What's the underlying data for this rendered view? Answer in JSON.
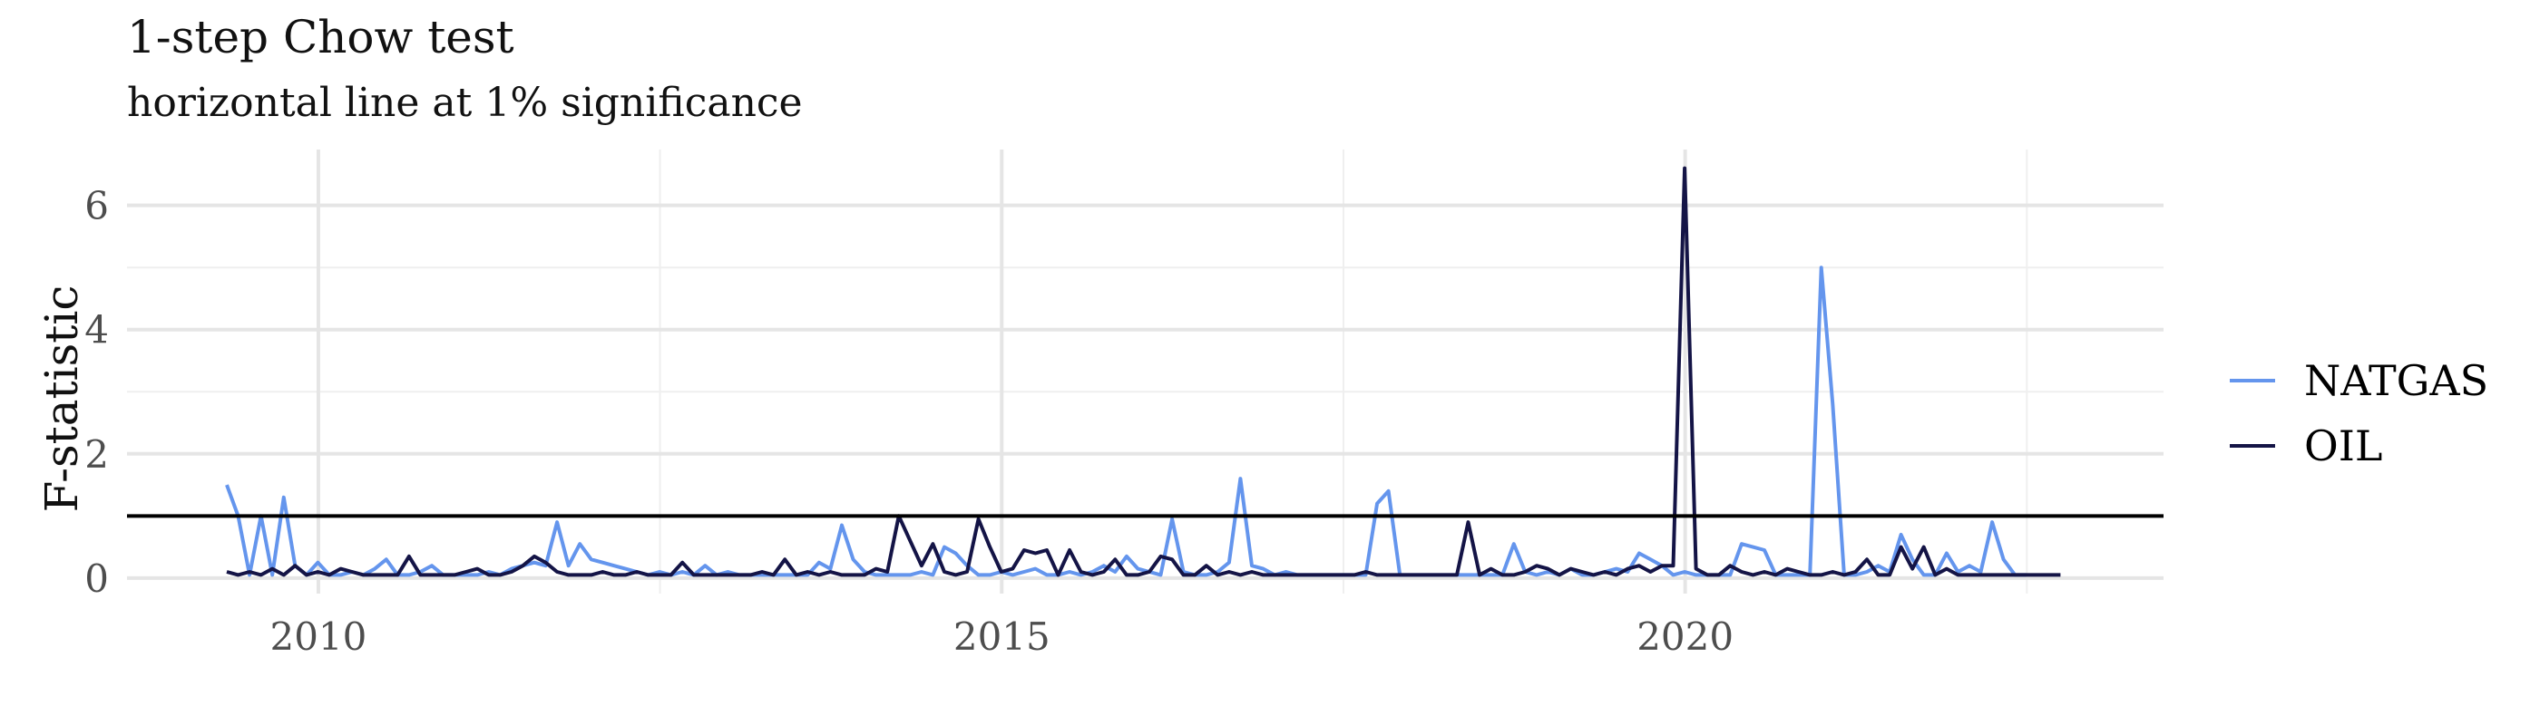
{
  "title": "1-step Chow test",
  "subtitle": "horizontal line at 1% significance",
  "colors": {
    "NATGAS": "#6495ED",
    "OIL": "#141446",
    "threshold": "#000000",
    "grid_major": "#e5e5e5",
    "grid_minor": "#efefef"
  },
  "chart_data": {
    "type": "line",
    "title": "1-step Chow test",
    "subtitle": "horizontal line at 1% significance",
    "xlabel": "",
    "ylabel": "F-statistic",
    "xlim": [
      2008.6,
      2023.5
    ],
    "ylim": [
      -0.25,
      6.9
    ],
    "xticks": [
      2010,
      2015,
      2020
    ],
    "yticks": [
      0,
      2,
      4,
      6
    ],
    "grid": true,
    "legend": "right",
    "hline": {
      "y": 1.0
    },
    "x_start": 2009.33,
    "x_step": 0.08333,
    "series": [
      {
        "name": "NATGAS",
        "color": "#6495ED",
        "values": [
          1.5,
          1.0,
          0.05,
          1.0,
          0.05,
          1.3,
          0.2,
          0.05,
          0.25,
          0.05,
          0.05,
          0.1,
          0.05,
          0.15,
          0.3,
          0.05,
          0.05,
          0.1,
          0.2,
          0.05,
          0.05,
          0.05,
          0.05,
          0.1,
          0.05,
          0.15,
          0.2,
          0.25,
          0.2,
          0.9,
          0.2,
          0.55,
          0.3,
          0.25,
          0.2,
          0.15,
          0.1,
          0.05,
          0.1,
          0.05,
          0.1,
          0.05,
          0.2,
          0.05,
          0.1,
          0.05,
          0.05,
          0.05,
          0.05,
          0.05,
          0.05,
          0.05,
          0.25,
          0.15,
          0.85,
          0.3,
          0.1,
          0.05,
          0.05,
          0.05,
          0.05,
          0.1,
          0.05,
          0.5,
          0.4,
          0.2,
          0.05,
          0.05,
          0.1,
          0.05,
          0.1,
          0.15,
          0.05,
          0.05,
          0.1,
          0.05,
          0.1,
          0.2,
          0.1,
          0.35,
          0.15,
          0.1,
          0.05,
          0.95,
          0.1,
          0.05,
          0.05,
          0.1,
          0.25,
          1.6,
          0.2,
          0.15,
          0.05,
          0.1,
          0.05,
          0.05,
          0.05,
          0.05,
          0.05,
          0.05,
          0.05,
          1.2,
          1.4,
          0.05,
          0.05,
          0.05,
          0.05,
          0.05,
          0.05,
          0.05,
          0.05,
          0.05,
          0.05,
          0.55,
          0.1,
          0.05,
          0.1,
          0.05,
          0.15,
          0.05,
          0.05,
          0.1,
          0.15,
          0.1,
          0.4,
          0.3,
          0.2,
          0.05,
          0.1,
          0.05,
          0.05,
          0.05,
          0.05,
          0.55,
          0.5,
          0.45,
          0.05,
          0.05,
          0.05,
          0.05,
          5.0,
          2.8,
          0.05,
          0.05,
          0.1,
          0.2,
          0.1,
          0.7,
          0.3,
          0.05,
          0.05,
          0.4,
          0.1,
          0.2,
          0.1,
          0.9,
          0.3,
          0.05,
          0.05
        ]
      },
      {
        "name": "OIL",
        "color": "#141446",
        "values": [
          0.1,
          0.05,
          0.1,
          0.05,
          0.15,
          0.05,
          0.2,
          0.05,
          0.1,
          0.05,
          0.15,
          0.1,
          0.05,
          0.05,
          0.05,
          0.05,
          0.35,
          0.05,
          0.05,
          0.05,
          0.05,
          0.1,
          0.15,
          0.05,
          0.05,
          0.1,
          0.2,
          0.35,
          0.25,
          0.1,
          0.05,
          0.05,
          0.05,
          0.1,
          0.05,
          0.05,
          0.1,
          0.05,
          0.05,
          0.05,
          0.25,
          0.05,
          0.05,
          0.05,
          0.05,
          0.05,
          0.05,
          0.1,
          0.05,
          0.3,
          0.05,
          0.1,
          0.05,
          0.1,
          0.05,
          0.05,
          0.05,
          0.15,
          0.1,
          1.0,
          0.6,
          0.2,
          0.55,
          0.1,
          0.05,
          0.1,
          0.95,
          0.5,
          0.1,
          0.15,
          0.45,
          0.4,
          0.45,
          0.05,
          0.45,
          0.1,
          0.05,
          0.1,
          0.3,
          0.05,
          0.05,
          0.1,
          0.35,
          0.3,
          0.05,
          0.05,
          0.2,
          0.05,
          0.1,
          0.05,
          0.1,
          0.05,
          0.05,
          0.05,
          0.05,
          0.05,
          0.05,
          0.05,
          0.05,
          0.05,
          0.1,
          0.05,
          0.05,
          0.05,
          0.05,
          0.05,
          0.05,
          0.05,
          0.05,
          0.9,
          0.05,
          0.15,
          0.05,
          0.05,
          0.1,
          0.2,
          0.15,
          0.05,
          0.15,
          0.1,
          0.05,
          0.1,
          0.05,
          0.15,
          0.2,
          0.1,
          0.2,
          0.2,
          6.6,
          0.15,
          0.05,
          0.05,
          0.2,
          0.1,
          0.05,
          0.1,
          0.05,
          0.15,
          0.1,
          0.05,
          0.05,
          0.1,
          0.05,
          0.1,
          0.3,
          0.05,
          0.05,
          0.5,
          0.15,
          0.5,
          0.05,
          0.15,
          0.05,
          0.05,
          0.05,
          0.05,
          0.05,
          0.05,
          0.05,
          0.05,
          0.05,
          0.05
        ]
      }
    ]
  }
}
